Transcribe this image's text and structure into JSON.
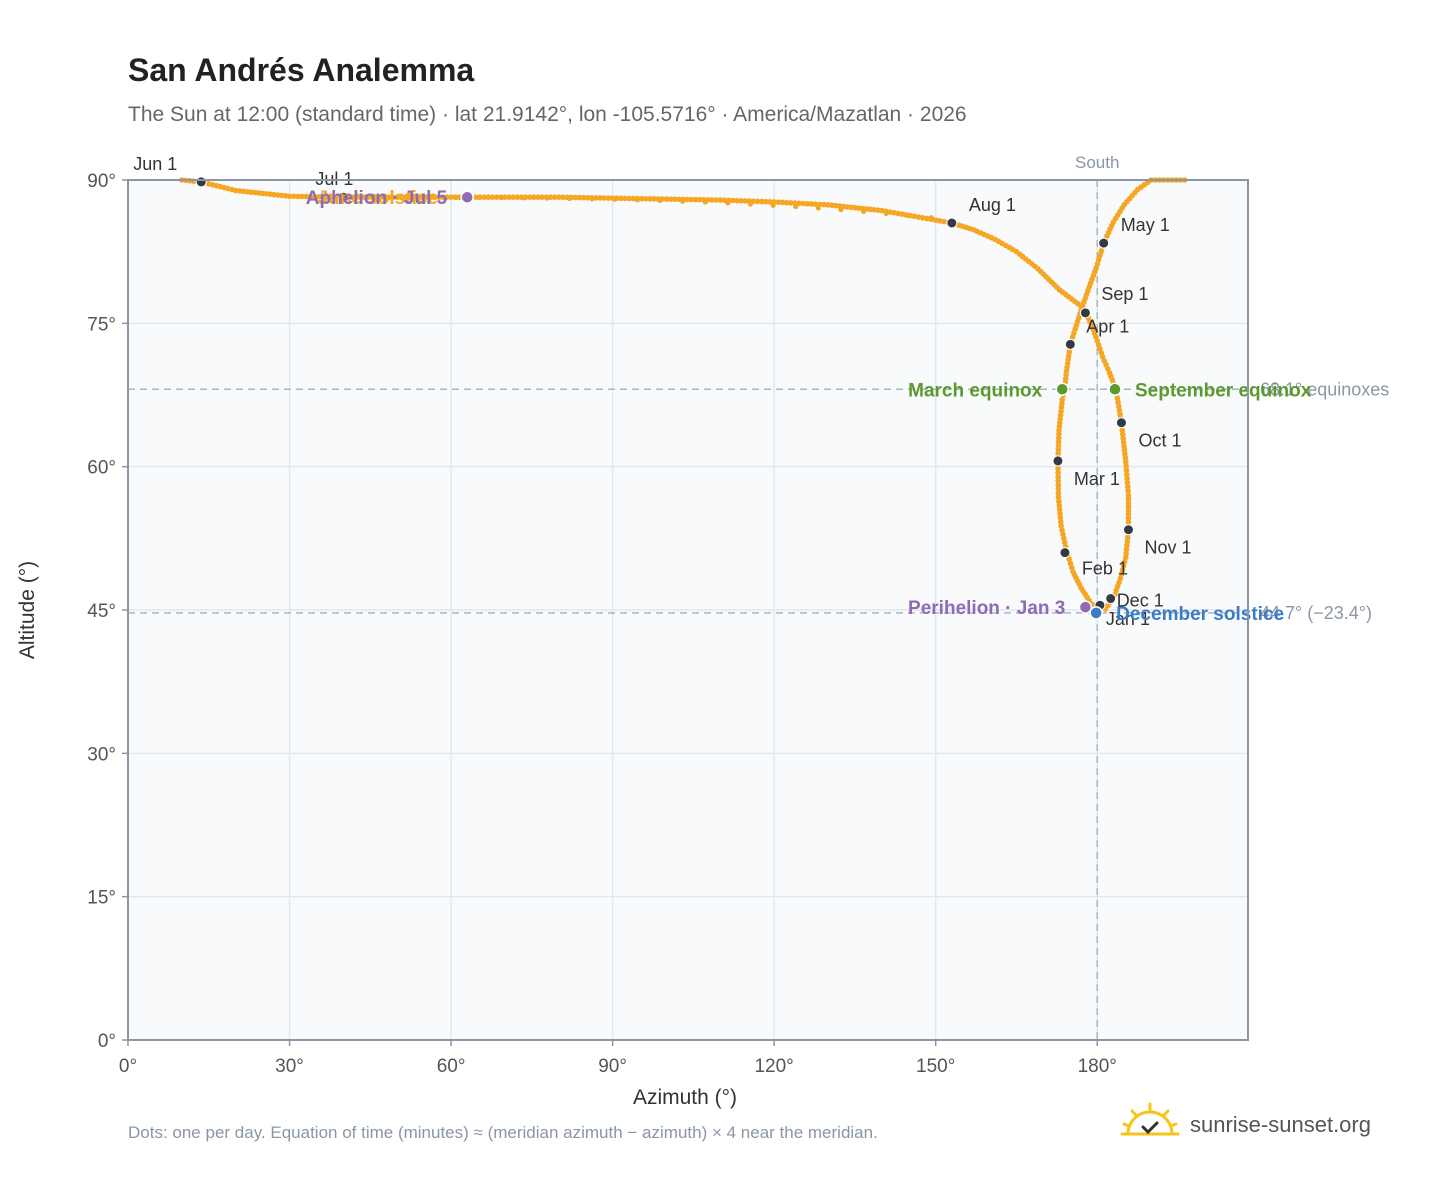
{
  "title": "San Andrés Analemma",
  "subtitle": "The Sun at 12:00 (standard time) · lat 21.9142°, lon -105.5716° · America/Mazatlan · 2026",
  "footnote": "Dots: one per day. Equation of time (minutes) ≈ (meridian azimuth − azimuth) × 4 near the meridian.",
  "brand": {
    "name": "sunrise-sunset.org",
    "icon": "sun-logo-icon"
  },
  "colors": {
    "curve": "#f5a623",
    "month_marker": "#333a44",
    "equinox": "#5a9a2e",
    "solstice": "#3b7dc4",
    "apsis": "#8e6bb3",
    "grid": "#e3e8ee",
    "plot_bg": "#f8fafc",
    "axis": "#8a96a6"
  },
  "chart_data": {
    "type": "scatter",
    "title": "San Andrés Analemma",
    "subtitle": "The Sun at 12:00 (standard time) · lat 21.9142°, lon -105.5716° · America/Mazatlan · 2026",
    "xlabel": "Azimuth (°)",
    "ylabel": "Altitude (°)",
    "xlim": [
      0,
      208
    ],
    "ylim": [
      0,
      90
    ],
    "xticks": [
      0,
      30,
      60,
      90,
      120,
      150,
      180
    ],
    "xtick_labels": [
      "0°",
      "30°",
      "60°",
      "90°",
      "120°",
      "150°",
      "180°"
    ],
    "yticks": [
      0,
      15,
      30,
      45,
      60,
      75,
      90
    ],
    "ytick_labels": [
      "0°",
      "15°",
      "30°",
      "45°",
      "60°",
      "75°",
      "90°"
    ],
    "grid": true,
    "series": [
      {
        "kind": "daily-path",
        "points": [
          [
            180.5,
            45.5
          ],
          [
            180.3,
            44.8
          ],
          [
            179.6,
            45.2
          ],
          [
            178.5,
            46.0
          ],
          [
            177.0,
            47.3
          ],
          [
            175.5,
            49.0
          ],
          [
            174.3,
            51.2
          ],
          [
            173.3,
            53.8
          ],
          [
            172.8,
            56.8
          ],
          [
            172.7,
            60.6
          ],
          [
            172.9,
            63.8
          ],
          [
            173.5,
            67.0
          ],
          [
            173.9,
            68.0
          ],
          [
            174.3,
            70.0
          ],
          [
            175.0,
            72.8
          ],
          [
            176.8,
            76.0
          ],
          [
            178.0,
            78.0
          ],
          [
            179.8,
            80.8
          ],
          [
            181.2,
            83.4
          ],
          [
            183.0,
            85.6
          ],
          [
            185.0,
            87.4
          ],
          [
            187.5,
            89.0
          ],
          [
            190.0,
            90.0
          ],
          [
            197.0,
            90.0
          ],
          [
            10.0,
            90.0
          ],
          [
            13.6,
            89.8
          ],
          [
            20.0,
            88.9
          ],
          [
            30.0,
            88.3
          ],
          [
            40.0,
            88.2
          ],
          [
            50.0,
            88.2
          ],
          [
            60.0,
            88.2
          ],
          [
            70.0,
            88.2
          ],
          [
            80.0,
            88.2
          ],
          [
            90.0,
            88.1
          ],
          [
            100.0,
            88.0
          ],
          [
            110.0,
            87.9
          ],
          [
            120.0,
            87.7
          ],
          [
            130.0,
            87.4
          ],
          [
            140.0,
            86.8
          ],
          [
            146.0,
            86.2
          ],
          [
            150.0,
            85.8
          ],
          [
            153.0,
            85.5
          ],
          [
            157.0,
            84.8
          ],
          [
            161.0,
            83.8
          ],
          [
            165.0,
            82.5
          ],
          [
            169.0,
            80.7
          ],
          [
            173.0,
            78.5
          ],
          [
            177.0,
            76.8
          ],
          [
            178.0,
            76.0
          ],
          [
            179.5,
            74.0
          ],
          [
            181.0,
            71.5
          ],
          [
            182.3,
            69.8
          ],
          [
            183.5,
            68.0
          ],
          [
            184.5,
            64.6
          ],
          [
            185.3,
            60.5
          ],
          [
            185.8,
            57.0
          ],
          [
            185.8,
            53.4
          ],
          [
            185.3,
            50.5
          ],
          [
            184.3,
            48.3
          ],
          [
            183.0,
            46.2
          ],
          [
            181.5,
            45.1
          ],
          [
            180.5,
            45.5
          ]
        ]
      }
    ],
    "month_markers": [
      {
        "label": "Jan 1",
        "x": 180.5,
        "y": 45.5
      },
      {
        "label": "Feb 1",
        "x": 174.0,
        "y": 51.0
      },
      {
        "label": "Mar 1",
        "x": 172.7,
        "y": 60.6
      },
      {
        "label": "Apr 1",
        "x": 175.0,
        "y": 72.8
      },
      {
        "label": "May 1",
        "x": 181.2,
        "y": 83.4
      },
      {
        "label": "Jun 1",
        "x": 13.6,
        "y": 89.8
      },
      {
        "label": "Jul 1",
        "x": 40.0,
        "y": 88.2
      },
      {
        "label": "Aug 1",
        "x": 153.0,
        "y": 85.5
      },
      {
        "label": "Sep 1",
        "x": 177.8,
        "y": 76.1
      },
      {
        "label": "Oct 1",
        "x": 184.5,
        "y": 64.6
      },
      {
        "label": "Nov 1",
        "x": 185.8,
        "y": 53.4
      },
      {
        "label": "Dec 1",
        "x": 182.5,
        "y": 46.2
      }
    ],
    "events": [
      {
        "label": "March equinox",
        "x": 173.5,
        "y": 68.1,
        "color": "equinox",
        "side": "left"
      },
      {
        "label": "September equinox",
        "x": 183.3,
        "y": 68.1,
        "color": "equinox",
        "side": "right"
      },
      {
        "label": "June solstice",
        "x": 31.5,
        "y": 88.2,
        "color": "curve",
        "side": "right"
      },
      {
        "label": "December solstice",
        "x": 179.8,
        "y": 44.7,
        "color": "solstice",
        "side": "right"
      },
      {
        "label": "Perihelion · Jan 3",
        "x": 177.8,
        "y": 45.3,
        "color": "apsis",
        "side": "left"
      },
      {
        "label": "Aphelion · Jul 5",
        "x": 63.0,
        "y": 88.2,
        "color": "apsis",
        "side": "left"
      }
    ],
    "reference_lines": [
      {
        "orientation": "vertical",
        "x": 180,
        "label": "South"
      },
      {
        "orientation": "horizontal",
        "y": 68.1,
        "label": "68.1° equinoxes"
      },
      {
        "orientation": "horizontal",
        "y": 44.7,
        "label": "44.7° (−23.4°)"
      }
    ]
  }
}
